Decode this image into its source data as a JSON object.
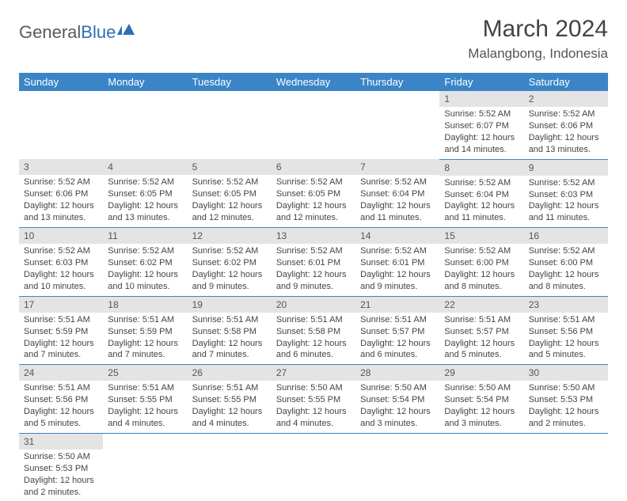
{
  "logo": {
    "general": "General",
    "blue": "Blue"
  },
  "title": "March 2024",
  "location": "Malangbong, Indonesia",
  "header_color": "#3b85c6",
  "daynum_bg": "#e4e4e4",
  "divider_color": "#3b85c6",
  "weekdays": [
    "Sunday",
    "Monday",
    "Tuesday",
    "Wednesday",
    "Thursday",
    "Friday",
    "Saturday"
  ],
  "weeks": [
    [
      null,
      null,
      null,
      null,
      null,
      {
        "n": "1",
        "sr": "Sunrise: 5:52 AM",
        "ss": "Sunset: 6:07 PM",
        "d1": "Daylight: 12 hours",
        "d2": "and 14 minutes."
      },
      {
        "n": "2",
        "sr": "Sunrise: 5:52 AM",
        "ss": "Sunset: 6:06 PM",
        "d1": "Daylight: 12 hours",
        "d2": "and 13 minutes."
      }
    ],
    [
      {
        "n": "3",
        "sr": "Sunrise: 5:52 AM",
        "ss": "Sunset: 6:06 PM",
        "d1": "Daylight: 12 hours",
        "d2": "and 13 minutes."
      },
      {
        "n": "4",
        "sr": "Sunrise: 5:52 AM",
        "ss": "Sunset: 6:05 PM",
        "d1": "Daylight: 12 hours",
        "d2": "and 13 minutes."
      },
      {
        "n": "5",
        "sr": "Sunrise: 5:52 AM",
        "ss": "Sunset: 6:05 PM",
        "d1": "Daylight: 12 hours",
        "d2": "and 12 minutes."
      },
      {
        "n": "6",
        "sr": "Sunrise: 5:52 AM",
        "ss": "Sunset: 6:05 PM",
        "d1": "Daylight: 12 hours",
        "d2": "and 12 minutes."
      },
      {
        "n": "7",
        "sr": "Sunrise: 5:52 AM",
        "ss": "Sunset: 6:04 PM",
        "d1": "Daylight: 12 hours",
        "d2": "and 11 minutes."
      },
      {
        "n": "8",
        "sr": "Sunrise: 5:52 AM",
        "ss": "Sunset: 6:04 PM",
        "d1": "Daylight: 12 hours",
        "d2": "and 11 minutes."
      },
      {
        "n": "9",
        "sr": "Sunrise: 5:52 AM",
        "ss": "Sunset: 6:03 PM",
        "d1": "Daylight: 12 hours",
        "d2": "and 11 minutes."
      }
    ],
    [
      {
        "n": "10",
        "sr": "Sunrise: 5:52 AM",
        "ss": "Sunset: 6:03 PM",
        "d1": "Daylight: 12 hours",
        "d2": "and 10 minutes."
      },
      {
        "n": "11",
        "sr": "Sunrise: 5:52 AM",
        "ss": "Sunset: 6:02 PM",
        "d1": "Daylight: 12 hours",
        "d2": "and 10 minutes."
      },
      {
        "n": "12",
        "sr": "Sunrise: 5:52 AM",
        "ss": "Sunset: 6:02 PM",
        "d1": "Daylight: 12 hours",
        "d2": "and 9 minutes."
      },
      {
        "n": "13",
        "sr": "Sunrise: 5:52 AM",
        "ss": "Sunset: 6:01 PM",
        "d1": "Daylight: 12 hours",
        "d2": "and 9 minutes."
      },
      {
        "n": "14",
        "sr": "Sunrise: 5:52 AM",
        "ss": "Sunset: 6:01 PM",
        "d1": "Daylight: 12 hours",
        "d2": "and 9 minutes."
      },
      {
        "n": "15",
        "sr": "Sunrise: 5:52 AM",
        "ss": "Sunset: 6:00 PM",
        "d1": "Daylight: 12 hours",
        "d2": "and 8 minutes."
      },
      {
        "n": "16",
        "sr": "Sunrise: 5:52 AM",
        "ss": "Sunset: 6:00 PM",
        "d1": "Daylight: 12 hours",
        "d2": "and 8 minutes."
      }
    ],
    [
      {
        "n": "17",
        "sr": "Sunrise: 5:51 AM",
        "ss": "Sunset: 5:59 PM",
        "d1": "Daylight: 12 hours",
        "d2": "and 7 minutes."
      },
      {
        "n": "18",
        "sr": "Sunrise: 5:51 AM",
        "ss": "Sunset: 5:59 PM",
        "d1": "Daylight: 12 hours",
        "d2": "and 7 minutes."
      },
      {
        "n": "19",
        "sr": "Sunrise: 5:51 AM",
        "ss": "Sunset: 5:58 PM",
        "d1": "Daylight: 12 hours",
        "d2": "and 7 minutes."
      },
      {
        "n": "20",
        "sr": "Sunrise: 5:51 AM",
        "ss": "Sunset: 5:58 PM",
        "d1": "Daylight: 12 hours",
        "d2": "and 6 minutes."
      },
      {
        "n": "21",
        "sr": "Sunrise: 5:51 AM",
        "ss": "Sunset: 5:57 PM",
        "d1": "Daylight: 12 hours",
        "d2": "and 6 minutes."
      },
      {
        "n": "22",
        "sr": "Sunrise: 5:51 AM",
        "ss": "Sunset: 5:57 PM",
        "d1": "Daylight: 12 hours",
        "d2": "and 5 minutes."
      },
      {
        "n": "23",
        "sr": "Sunrise: 5:51 AM",
        "ss": "Sunset: 5:56 PM",
        "d1": "Daylight: 12 hours",
        "d2": "and 5 minutes."
      }
    ],
    [
      {
        "n": "24",
        "sr": "Sunrise: 5:51 AM",
        "ss": "Sunset: 5:56 PM",
        "d1": "Daylight: 12 hours",
        "d2": "and 5 minutes."
      },
      {
        "n": "25",
        "sr": "Sunrise: 5:51 AM",
        "ss": "Sunset: 5:55 PM",
        "d1": "Daylight: 12 hours",
        "d2": "and 4 minutes."
      },
      {
        "n": "26",
        "sr": "Sunrise: 5:51 AM",
        "ss": "Sunset: 5:55 PM",
        "d1": "Daylight: 12 hours",
        "d2": "and 4 minutes."
      },
      {
        "n": "27",
        "sr": "Sunrise: 5:50 AM",
        "ss": "Sunset: 5:55 PM",
        "d1": "Daylight: 12 hours",
        "d2": "and 4 minutes."
      },
      {
        "n": "28",
        "sr": "Sunrise: 5:50 AM",
        "ss": "Sunset: 5:54 PM",
        "d1": "Daylight: 12 hours",
        "d2": "and 3 minutes."
      },
      {
        "n": "29",
        "sr": "Sunrise: 5:50 AM",
        "ss": "Sunset: 5:54 PM",
        "d1": "Daylight: 12 hours",
        "d2": "and 3 minutes."
      },
      {
        "n": "30",
        "sr": "Sunrise: 5:50 AM",
        "ss": "Sunset: 5:53 PM",
        "d1": "Daylight: 12 hours",
        "d2": "and 2 minutes."
      }
    ],
    [
      {
        "n": "31",
        "sr": "Sunrise: 5:50 AM",
        "ss": "Sunset: 5:53 PM",
        "d1": "Daylight: 12 hours",
        "d2": "and 2 minutes."
      },
      null,
      null,
      null,
      null,
      null,
      null
    ]
  ]
}
